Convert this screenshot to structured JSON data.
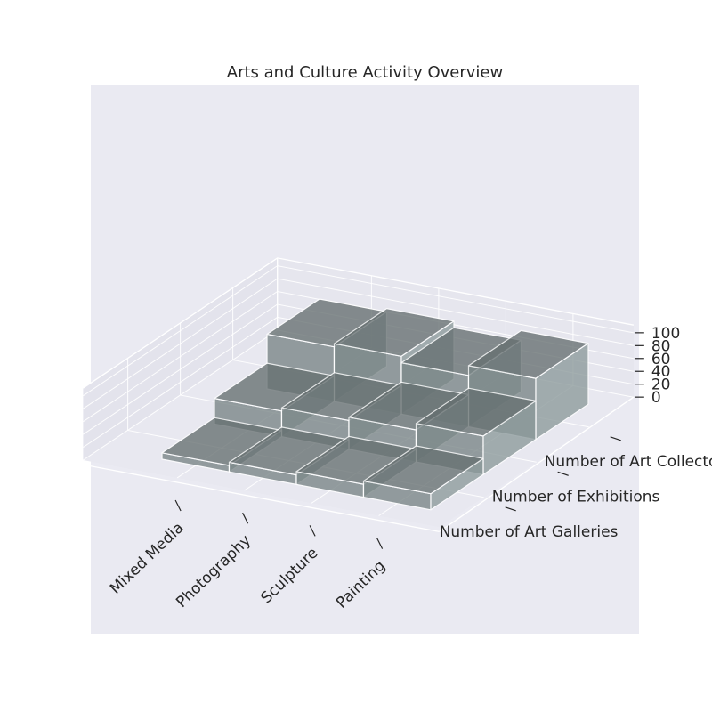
{
  "chart_data": {
    "type": "bar3d",
    "title": "Arts and Culture Activity Overview",
    "categories": [
      "Mixed Media",
      "Photography",
      "Sculpture",
      "Painting"
    ],
    "series": [
      {
        "name": "Number of Art Galleries",
        "values": [
          10,
          15,
          20,
          25
        ]
      },
      {
        "name": "Number of Exhibitions",
        "values": [
          40,
          45,
          50,
          60
        ]
      },
      {
        "name": "Number of Art Collectors",
        "values": [
          85,
          90,
          80,
          95
        ]
      }
    ],
    "zticks": [
      "0",
      "20",
      "40",
      "60",
      "80",
      "100"
    ],
    "zlim": [
      0,
      100
    ],
    "bar_color": "#7f8c8d",
    "pane_color": "#eaeaf2",
    "grid": true
  }
}
